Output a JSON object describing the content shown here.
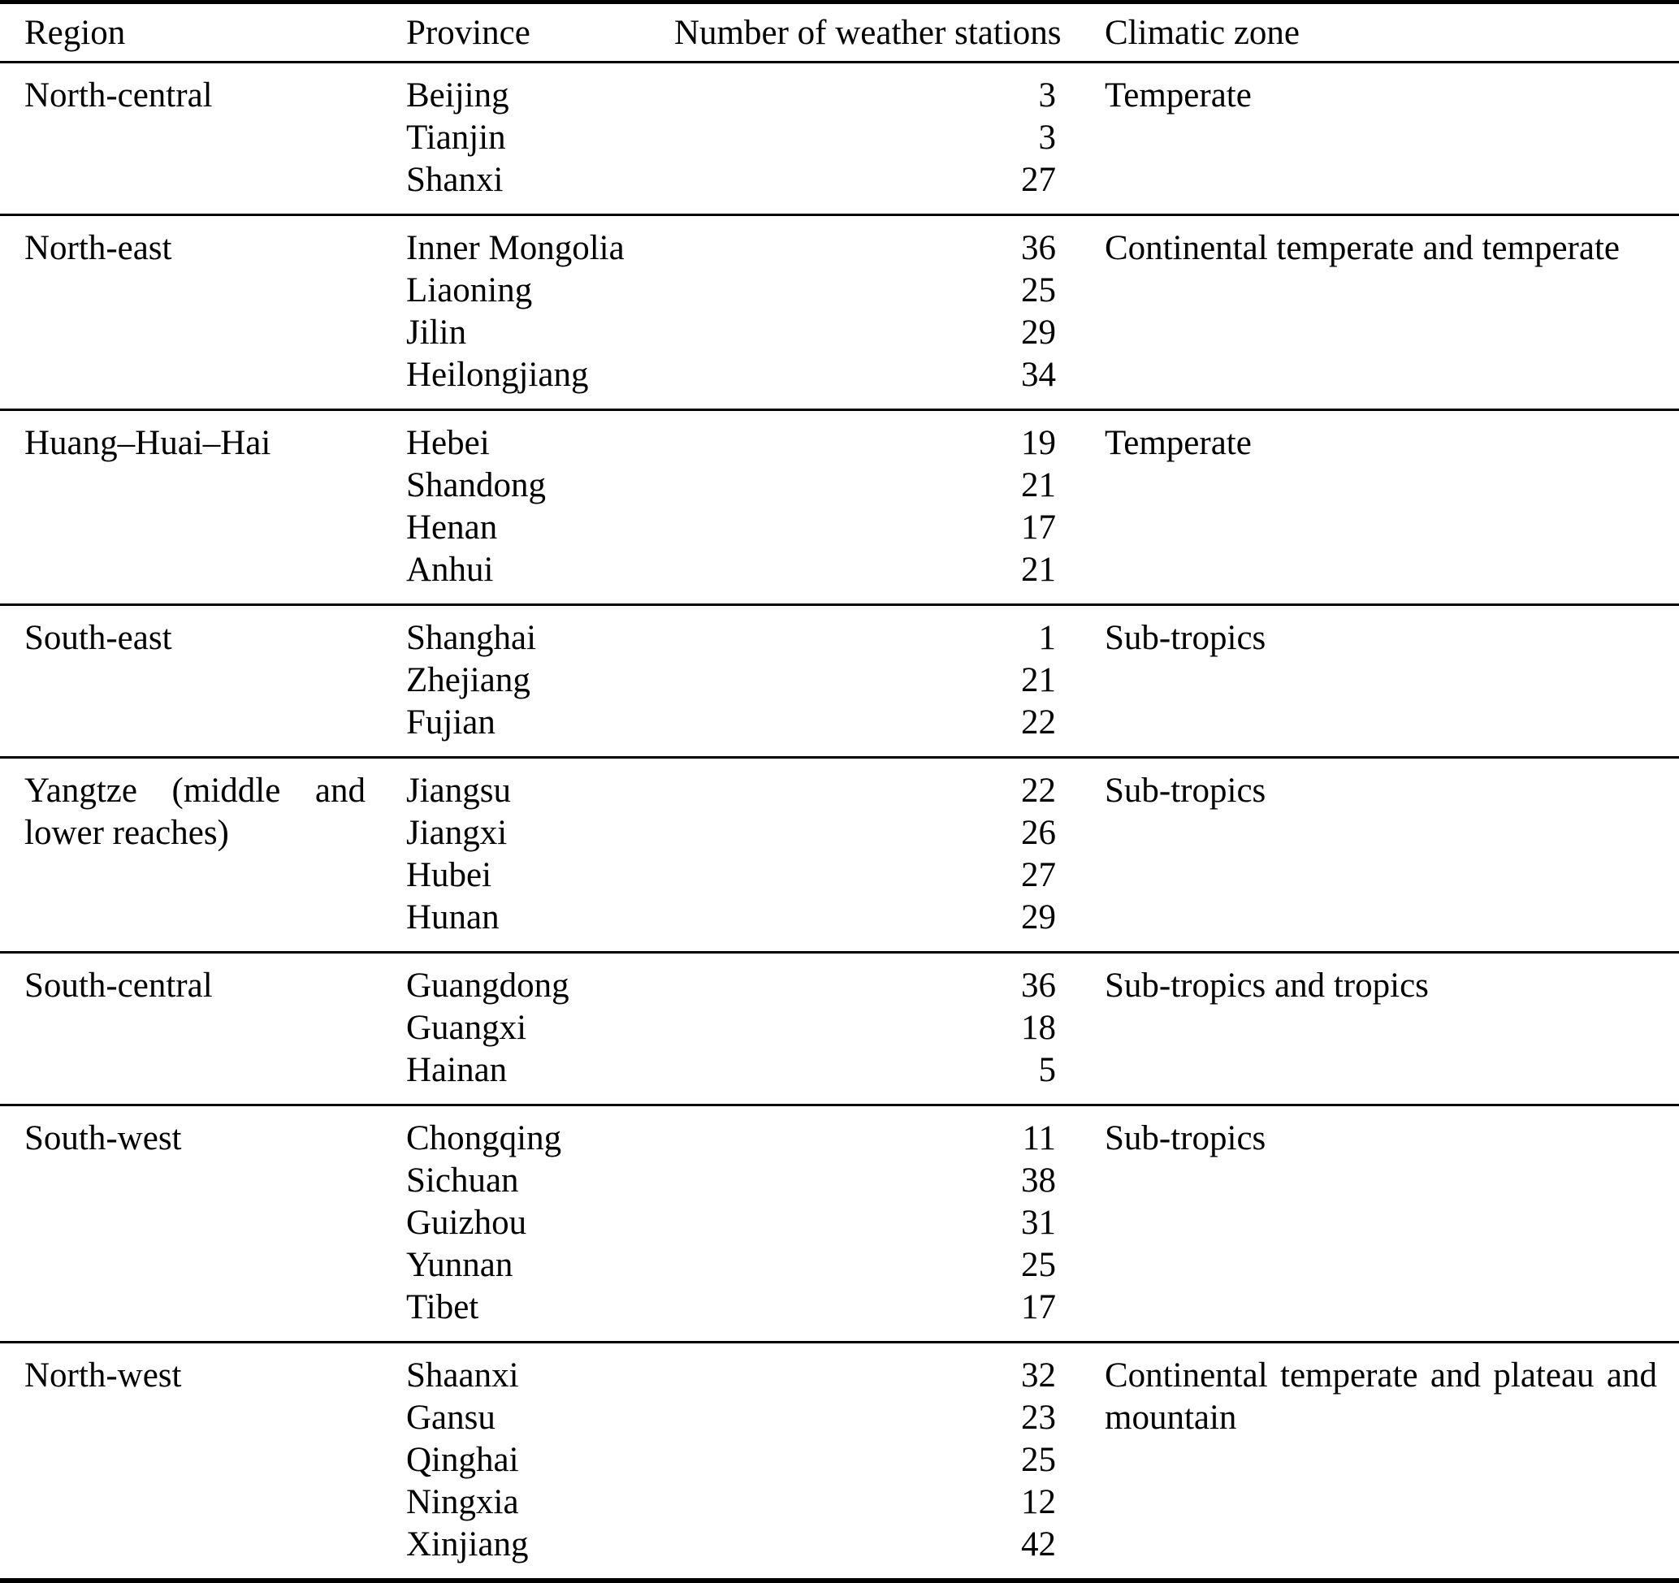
{
  "table": {
    "columns": [
      "Region",
      "Province",
      "Number of weather stations",
      "Climatic zone"
    ],
    "sections": [
      {
        "region": "North-central",
        "climatic_zone": "Temperate",
        "rows": [
          {
            "province": "Beijing",
            "stations": 3
          },
          {
            "province": "Tianjin",
            "stations": 3
          },
          {
            "province": "Shanxi",
            "stations": 27
          }
        ]
      },
      {
        "region": "North-east",
        "climatic_zone": "Continental temperate and temperate",
        "rows": [
          {
            "province": "Inner Mongolia",
            "stations": 36
          },
          {
            "province": "Liaoning",
            "stations": 25
          },
          {
            "province": "Jilin",
            "stations": 29
          },
          {
            "province": "Heilongjiang",
            "stations": 34
          }
        ]
      },
      {
        "region": "Huang–Huai–Hai",
        "climatic_zone": "Temperate",
        "rows": [
          {
            "province": "Hebei",
            "stations": 19
          },
          {
            "province": "Shandong",
            "stations": 21
          },
          {
            "province": "Henan",
            "stations": 17
          },
          {
            "province": "Anhui",
            "stations": 21
          }
        ]
      },
      {
        "region": "South-east",
        "climatic_zone": "Sub-tropics",
        "rows": [
          {
            "province": "Shanghai",
            "stations": 1
          },
          {
            "province": "Zhejiang",
            "stations": 21
          },
          {
            "province": "Fujian",
            "stations": 22
          }
        ]
      },
      {
        "region": "Yangtze (middle and lower reaches)",
        "climatic_zone": "Sub-tropics",
        "rows": [
          {
            "province": "Jiangsu",
            "stations": 22
          },
          {
            "province": "Jiangxi",
            "stations": 26
          },
          {
            "province": "Hubei",
            "stations": 27
          },
          {
            "province": "Hunan",
            "stations": 29
          }
        ]
      },
      {
        "region": "South-central",
        "climatic_zone": "Sub-tropics and tropics",
        "rows": [
          {
            "province": "Guangdong",
            "stations": 36
          },
          {
            "province": "Guangxi",
            "stations": 18
          },
          {
            "province": "Hainan",
            "stations": 5
          }
        ]
      },
      {
        "region": "South-west",
        "climatic_zone": "Sub-tropics",
        "rows": [
          {
            "province": "Chongqing",
            "stations": 11
          },
          {
            "province": "Sichuan",
            "stations": 38
          },
          {
            "province": "Guizhou",
            "stations": 31
          },
          {
            "province": "Yunnan",
            "stations": 25
          },
          {
            "province": "Tibet",
            "stations": 17
          }
        ]
      },
      {
        "region": "North-west",
        "climatic_zone": "Continental temperate and plateau and mountain",
        "rows": [
          {
            "province": "Shaanxi",
            "stations": 32
          },
          {
            "province": "Gansu",
            "stations": 23
          },
          {
            "province": "Qinghai",
            "stations": 25
          },
          {
            "province": "Ningxia",
            "stations": 12
          },
          {
            "province": "Xinjiang",
            "stations": 42
          }
        ]
      }
    ]
  }
}
